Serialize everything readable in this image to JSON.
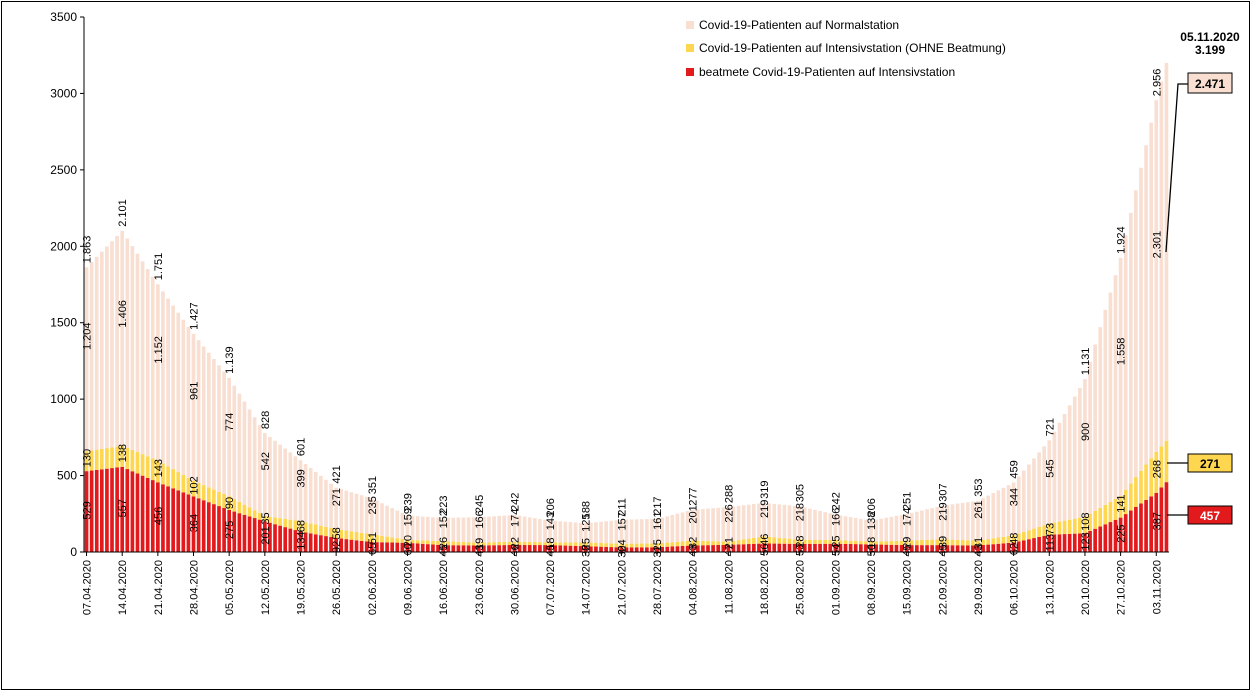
{
  "chart_data": {
    "type": "bar",
    "stacked": true,
    "y_axis": {
      "ylim": [
        0,
        3500
      ],
      "ticks": [
        "0",
        "500",
        "1000",
        "1500",
        "2000",
        "2500",
        "3000",
        "3500"
      ]
    },
    "grid": false,
    "legend_position": "top-right",
    "date_labels": [
      "07.04.2020",
      "14.04.2020",
      "21.04.2020",
      "28.04.2020",
      "05.05.2020",
      "12.05.2020",
      "19.05.2020",
      "26.05.2020",
      "02.06.2020",
      "09.06.2020",
      "16.06.2020",
      "23.06.2020",
      "30.06.2020",
      "07.07.2020",
      "14.07.2020",
      "21.07.2020",
      "28.07.2020",
      "04.08.2020",
      "11.08.2020",
      "18.08.2020",
      "25.08.2020",
      "01.09.2020",
      "08.09.2020",
      "15.09.2020",
      "22.09.2020",
      "29.09.2020",
      "06.10.2020",
      "13.10.2020",
      "20.10.2020",
      "27.10.2020",
      "03.11.2020"
    ],
    "series": [
      {
        "name": "beatmete Covid-19-Patienten auf Intensivstation",
        "color": "#e31a1c",
        "values": [
          529,
          557,
          456,
          364,
          275,
          201,
          134,
          92,
          65,
          60,
          45,
          43,
          46,
          45,
          38,
          30,
          31,
          43,
          47,
          56,
          53,
          54,
          50,
          45,
          45,
          43,
          62,
          113,
          123,
          225,
          387,
          457
        ]
      },
      {
        "name": "Covid-19-Patienten auf Intensivstation (OHNE Beatmung)",
        "color": "#ffd64f",
        "values": [
          130,
          138,
          143,
          102,
          90,
          35,
          68,
          58,
          51,
          20,
          26,
          19,
          22,
          18,
          25,
          24,
          25,
          32,
          21,
          46,
          28,
          25,
          18,
          29,
          39,
          31,
          48,
          73,
          108,
          141,
          268,
          271
        ]
      },
      {
        "name": "Covid-19-Patienten auf Normalstation",
        "color": "#f8dfd2",
        "values": [
          1204,
          1406,
          1152,
          961,
          774,
          542,
          399,
          271,
          235,
          159,
          152,
          166,
          174,
          143,
          125,
          157,
          161,
          201,
          226,
          219,
          218,
          166,
          138,
          174,
          219,
          261,
          344,
          545,
          900,
          1558,
          2301,
          2471
        ]
      }
    ],
    "total_labels": [
      "1.863",
      "2.101",
      "1.751",
      "1.427",
      "1.139",
      "828",
      "601",
      "421",
      "351",
      "239",
      "223",
      "245",
      "242",
      "206",
      "188",
      "211",
      "217",
      "277",
      "288",
      "319",
      "305",
      "242",
      "206",
      "251",
      "307",
      "353",
      "459",
      "721",
      "1.131",
      "1.924",
      "2.956"
    ],
    "lower_labels": [
      "529",
      "557",
      "456",
      "364",
      "275",
      "201",
      "134",
      "92",
      "65",
      "60",
      "45",
      "43",
      "46",
      "45",
      "38",
      "30",
      "31",
      "43",
      "47",
      "56",
      "53",
      "54",
      "50",
      "45",
      "45",
      "43",
      "62",
      "113",
      "123",
      "225",
      "387"
    ],
    "icu_labels": [
      "130",
      "138",
      "143",
      "102",
      "90",
      "35",
      "68",
      "58",
      "51",
      "20",
      "26",
      "19",
      "22",
      "18",
      "25",
      "24",
      "25",
      "32",
      "21",
      "46",
      "28",
      "25",
      "18",
      "29",
      "39",
      "31",
      "48",
      "73",
      "108",
      "141",
      "268"
    ],
    "normal_labels": [
      "1.204",
      "1.406",
      "1.152",
      "961",
      "774",
      "542",
      "399",
      "271",
      "235",
      "159",
      "152",
      "166",
      "174",
      "143",
      "125",
      "157",
      "161",
      "201",
      "226",
      "219",
      "218",
      "166",
      "138",
      "174",
      "219",
      "261",
      "344",
      "545",
      "900",
      "1.558",
      "2.301"
    ],
    "final_annotation": {
      "date": "05.11.2020",
      "total": "3.199",
      "normal": "2.471",
      "icu": "271",
      "ventilated": "457"
    }
  }
}
